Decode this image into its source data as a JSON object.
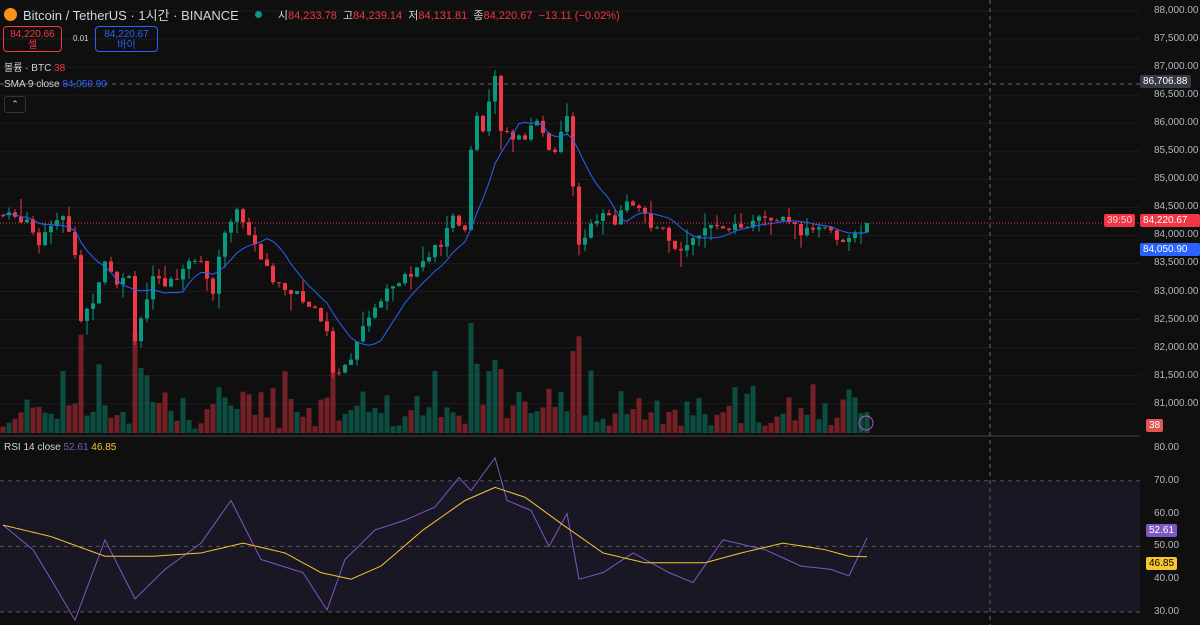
{
  "header": {
    "title": "Bitcoin / TetherUS · 1시간 · BINANCE",
    "o_label": "시",
    "o": "84,233.78",
    "h_label": "고",
    "h": "84,239.14",
    "l_label": "저",
    "l": "84,131.81",
    "c_label": "종",
    "c": "84,220.67",
    "change": "−13.11 (−0.02%)"
  },
  "trade": {
    "sell_price": "84,220.66",
    "sell_label": "셀",
    "spread": "0.01",
    "buy_price": "84,220.67",
    "buy_label": "바이"
  },
  "volume_legend": {
    "label": "볼륨 · BTC",
    "value": "38"
  },
  "sma_legend": {
    "label": "SMA 9 close",
    "value": "84,050.90"
  },
  "rsi_legend": {
    "label": "RSI 14 close",
    "value": "52.61",
    "ma": "46.85"
  },
  "axis": {
    "price_ticks": [
      "88,000.00",
      "87,500.00",
      "87,000.00",
      "86,500.00",
      "86,000.00",
      "85,500.00",
      "85,000.00",
      "84,500.00",
      "84,000.00",
      "83,500.00",
      "83,000.00",
      "82,500.00",
      "82,000.00",
      "81,500.00",
      "81,000.00"
    ],
    "rsi_ticks": [
      "80.00",
      "70.00",
      "60.00",
      "50.00",
      "40.00",
      "30.00"
    ],
    "crosshair_price": "86,706.88",
    "last_price": "84,220.67",
    "countdown": "39:50",
    "sma_tag": "84,050.90",
    "volume_tag": "38",
    "rsi_tag": "52.61",
    "rsi_ma_tag": "46.85"
  },
  "colors": {
    "up": "#089981",
    "down": "#f23645",
    "sma": "#2962ff",
    "rsi": "#7e57c2",
    "rsi_ma": "#f7c531"
  },
  "chart_data": {
    "type": "candlestick",
    "ylim": [
      80700,
      88200
    ],
    "rsi_ylim": [
      30,
      80
    ],
    "close_keypoints": [
      [
        0,
        84360
      ],
      [
        4,
        84300
      ],
      [
        6,
        83900
      ],
      [
        8,
        84250
      ],
      [
        10,
        84300
      ],
      [
        12,
        83700
      ],
      [
        13,
        82500
      ],
      [
        15,
        82850
      ],
      [
        17,
        83600
      ],
      [
        19,
        83200
      ],
      [
        21,
        83300
      ],
      [
        22,
        82200
      ],
      [
        25,
        83200
      ],
      [
        27,
        83100
      ],
      [
        29,
        83300
      ],
      [
        31,
        83600
      ],
      [
        33,
        83500
      ],
      [
        35,
        83000
      ],
      [
        37,
        84100
      ],
      [
        39,
        84450
      ],
      [
        41,
        84000
      ],
      [
        43,
        83600
      ],
      [
        45,
        83200
      ],
      [
        47,
        83100
      ],
      [
        50,
        82850
      ],
      [
        52,
        82700
      ],
      [
        54,
        82300
      ],
      [
        55,
        81600
      ],
      [
        57,
        81650
      ],
      [
        59,
        82100
      ],
      [
        62,
        82700
      ],
      [
        64,
        83100
      ],
      [
        67,
        83300
      ],
      [
        69,
        83400
      ],
      [
        71,
        83650
      ],
      [
        73,
        83850
      ],
      [
        75,
        84300
      ],
      [
        77,
        84100
      ],
      [
        78,
        85600
      ],
      [
        79,
        86050
      ],
      [
        80,
        85900
      ],
      [
        82,
        86770
      ],
      [
        83,
        85950
      ],
      [
        84,
        85800
      ],
      [
        86,
        85750
      ],
      [
        87,
        85800
      ],
      [
        89,
        86100
      ],
      [
        91,
        85600
      ],
      [
        92,
        85500
      ],
      [
        94,
        86100
      ],
      [
        95,
        84900
      ],
      [
        96,
        83900
      ],
      [
        98,
        84150
      ],
      [
        100,
        84400
      ],
      [
        102,
        84200
      ],
      [
        104,
        84650
      ],
      [
        106,
        84500
      ],
      [
        108,
        84100
      ],
      [
        110,
        84050
      ],
      [
        112,
        83700
      ],
      [
        115,
        84000
      ],
      [
        117,
        84050
      ],
      [
        120,
        84200
      ],
      [
        123,
        84150
      ],
      [
        127,
        84300
      ],
      [
        130,
        84250
      ],
      [
        133,
        84050
      ],
      [
        137,
        84200
      ],
      [
        139,
        83950
      ],
      [
        142,
        83950
      ],
      [
        144,
        84220
      ]
    ],
    "rsi_keypoints": [
      [
        0,
        56.5
      ],
      [
        5,
        49
      ],
      [
        8,
        40
      ],
      [
        12,
        27.5
      ],
      [
        17,
        52
      ],
      [
        22,
        34
      ],
      [
        27,
        43
      ],
      [
        33,
        51
      ],
      [
        38,
        64
      ],
      [
        43,
        46
      ],
      [
        50,
        42
      ],
      [
        54,
        30.6
      ],
      [
        57,
        46
      ],
      [
        62,
        55
      ],
      [
        67,
        58
      ],
      [
        72,
        62
      ],
      [
        76,
        71
      ],
      [
        78,
        67
      ],
      [
        82,
        77
      ],
      [
        84,
        64
      ],
      [
        88,
        61
      ],
      [
        91,
        50
      ],
      [
        94,
        60
      ],
      [
        96,
        40
      ],
      [
        100,
        42
      ],
      [
        105,
        48
      ],
      [
        111,
        42
      ],
      [
        115,
        39
      ],
      [
        120,
        52
      ],
      [
        127,
        49
      ],
      [
        133,
        44
      ],
      [
        138,
        43
      ],
      [
        141,
        41
      ],
      [
        144,
        52.61
      ]
    ],
    "rsi_ma_keypoints": [
      [
        0,
        56.5
      ],
      [
        8,
        53
      ],
      [
        17,
        47
      ],
      [
        25,
        47
      ],
      [
        33,
        48
      ],
      [
        40,
        51
      ],
      [
        47,
        48
      ],
      [
        53,
        42
      ],
      [
        58,
        40
      ],
      [
        63,
        44
      ],
      [
        70,
        55
      ],
      [
        77,
        64
      ],
      [
        82,
        68
      ],
      [
        87,
        65
      ],
      [
        93,
        57
      ],
      [
        100,
        48
      ],
      [
        107,
        45
      ],
      [
        117,
        45
      ],
      [
        123,
        48
      ],
      [
        130,
        51
      ],
      [
        137,
        49
      ],
      [
        141,
        47
      ],
      [
        144,
        46.85
      ]
    ]
  }
}
